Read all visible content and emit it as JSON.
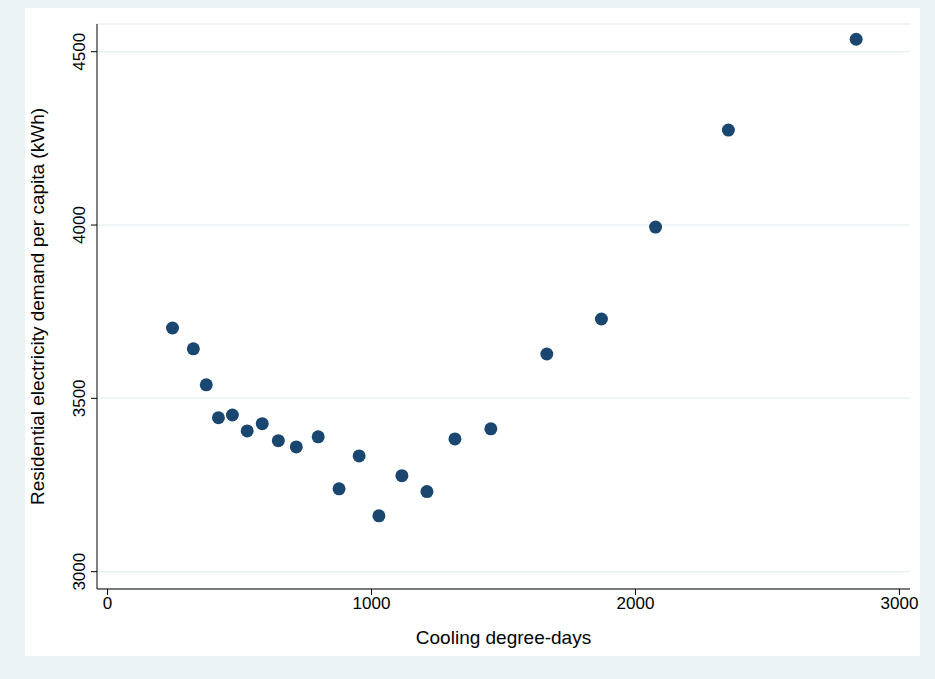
{
  "chart_data": {
    "type": "scatter",
    "x_label": "Cooling degree-days",
    "y_label": "Residential electricity demand per capita (kWh)",
    "x": [
      246,
      325,
      374,
      420,
      473,
      529,
      586,
      647,
      715,
      798,
      877,
      953,
      1028,
      1115,
      1210,
      1316,
      1452,
      1664,
      1871,
      2076,
      2352,
      2836
    ],
    "values": [
      3703,
      3643,
      3539,
      3444,
      3452,
      3406,
      3427,
      3378,
      3360,
      3389,
      3239,
      3334,
      3161,
      3277,
      3231,
      3383,
      3412,
      3628,
      3729,
      3994,
      4274,
      4536
    ],
    "xlim": [
      -40,
      3040
    ],
    "ylim": [
      2950,
      4580
    ],
    "xticks": [
      0,
      1000,
      2000,
      3000
    ],
    "yticks": [
      3000,
      3500,
      4000,
      4500
    ],
    "grid": true,
    "color": "#1a476f",
    "marker": "circle"
  }
}
